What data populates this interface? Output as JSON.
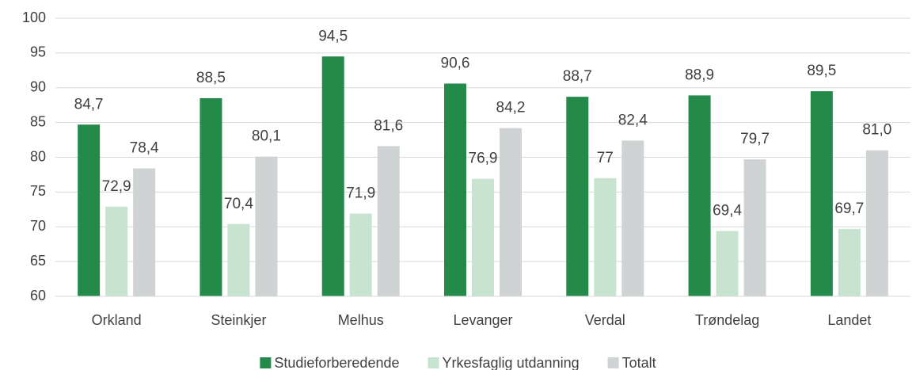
{
  "chart_data": {
    "type": "bar",
    "categories": [
      "Orkland",
      "Steinkjer",
      "Melhus",
      "Levanger",
      "Verdal",
      "Trøndelag",
      "Landet"
    ],
    "series": [
      {
        "name": "Studieforberedende",
        "color": "#238a4a",
        "values": [
          84.7,
          88.5,
          94.5,
          90.6,
          88.7,
          88.9,
          89.5
        ],
        "value_labels": [
          "84,7",
          "88,5",
          "94,5",
          "90,6",
          "88,7",
          "88,9",
          "89,5"
        ]
      },
      {
        "name": "Yrkesfaglig utdanning",
        "color": "#c8e4d1",
        "values": [
          72.9,
          70.4,
          71.9,
          76.9,
          77,
          69.4,
          69.7
        ],
        "value_labels": [
          "72,9",
          "70,4",
          "71,9",
          "76,9",
          "77",
          "69,4",
          "69,7"
        ]
      },
      {
        "name": "Totalt",
        "color": "#d0d3d4",
        "values": [
          78.4,
          80.1,
          81.6,
          84.2,
          82.4,
          79.7,
          81.0
        ],
        "value_labels": [
          "78,4",
          "80,1",
          "81,6",
          "84,2",
          "82,4",
          "79,7",
          "81,0"
        ]
      }
    ],
    "ylim": [
      60,
      100
    ],
    "yticks": [
      60,
      65,
      70,
      75,
      80,
      85,
      90,
      95,
      100
    ],
    "grid": true,
    "legend": "bottom"
  }
}
